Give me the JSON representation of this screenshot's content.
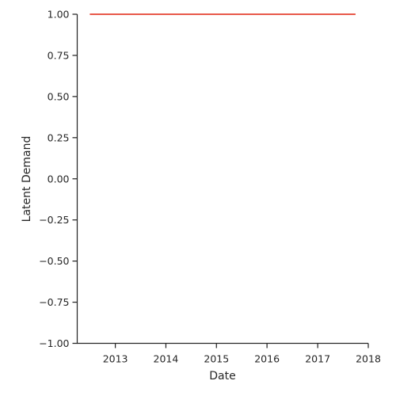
{
  "chart_data": {
    "type": "line",
    "title": "",
    "xlabel": "Date",
    "ylabel": "Latent Demand",
    "xlim": [
      "2012-04-01",
      "2018-01-01"
    ],
    "ylim": [
      -1.0,
      1.0
    ],
    "x_ticks": [
      "2013",
      "2014",
      "2015",
      "2016",
      "2017",
      "2018"
    ],
    "y_ticks": [
      "−1.00",
      "−0.75",
      "−0.50",
      "−0.25",
      "0.00",
      "0.25",
      "0.50",
      "0.75",
      "1.00"
    ],
    "grid": false,
    "legend": "none",
    "series": [
      {
        "color": "#e8594a",
        "x": [
          "2012-07-01",
          "2017-10-01"
        ],
        "y": [
          1.0,
          1.0
        ]
      }
    ]
  }
}
